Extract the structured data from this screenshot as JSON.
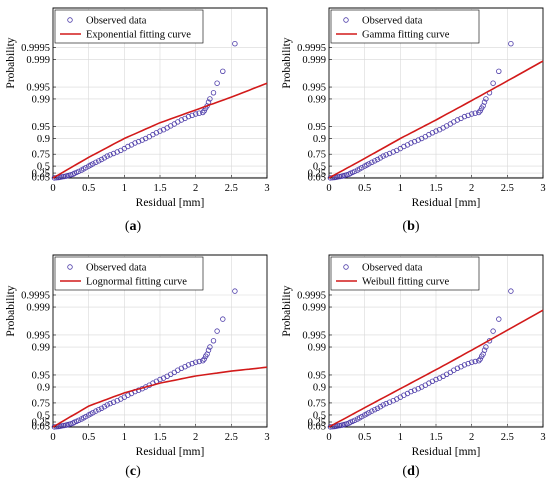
{
  "chart_data": [
    {
      "type": "scatter",
      "caption": "(a)",
      "xlabel": "Residual [mm]",
      "ylabel": "Probability",
      "xlim": [
        0,
        3
      ],
      "xticks": [
        "0",
        "0.5",
        "1",
        "1.5",
        "2",
        "2.5",
        "3"
      ],
      "yticks": [
        "0.05",
        "0.25",
        "0.5",
        "0.75",
        "0.9",
        "0.95",
        "0.99",
        "0.995",
        "0.999",
        "0.9995"
      ],
      "grid": true,
      "legend_position": "top-left",
      "series": [
        {
          "name": "Observed data",
          "kind": "markers",
          "color": "#4b3aa8",
          "x": [
            0.02,
            0.05,
            0.08,
            0.1,
            0.12,
            0.15,
            0.18,
            0.2,
            0.22,
            0.25,
            0.28,
            0.3,
            0.33,
            0.36,
            0.4,
            0.43,
            0.46,
            0.5,
            0.53,
            0.56,
            0.6,
            0.64,
            0.68,
            0.72,
            0.76,
            0.8,
            0.85,
            0.9,
            0.95,
            1.0,
            1.05,
            1.1,
            1.15,
            1.2,
            1.25,
            1.3,
            1.35,
            1.4,
            1.45,
            1.5,
            1.55,
            1.6,
            1.65,
            1.7,
            1.75,
            1.8,
            1.85,
            1.9,
            1.95,
            2.0,
            2.05,
            2.1,
            2.12,
            2.14,
            2.16,
            2.18,
            2.2,
            2.25,
            2.3,
            2.38,
            2.55
          ],
          "y": [
            0.005,
            0.015,
            0.03,
            0.045,
            0.06,
            0.08,
            0.1,
            0.12,
            0.14,
            0.17,
            0.2,
            0.24,
            0.28,
            0.32,
            0.37,
            0.41,
            0.45,
            0.5,
            0.53,
            0.56,
            0.6,
            0.63,
            0.66,
            0.69,
            0.72,
            0.74,
            0.76,
            0.78,
            0.8,
            0.82,
            0.84,
            0.855,
            0.87,
            0.88,
            0.89,
            0.9,
            0.91,
            0.92,
            0.928,
            0.935,
            0.94,
            0.946,
            0.952,
            0.957,
            0.962,
            0.966,
            0.969,
            0.972,
            0.974,
            0.976,
            0.977,
            0.978,
            0.98,
            0.983,
            0.985,
            0.988,
            0.99,
            0.993,
            0.996,
            0.998,
            0.9996
          ]
        },
        {
          "name": "Exponential fitting curve",
          "kind": "line",
          "color": "#d21a1a",
          "x": [
            0,
            0.5,
            1,
            1.5,
            2,
            2.5,
            3
          ],
          "y": [
            0.0,
            0.7,
            0.9,
            0.96,
            0.981,
            0.991,
            0.996
          ]
        }
      ]
    },
    {
      "type": "scatter",
      "caption": "(b)",
      "xlabel": "Residual [mm]",
      "ylabel": "Probability",
      "xlim": [
        0,
        3
      ],
      "xticks": [
        "0",
        "0.5",
        "1",
        "1.5",
        "2",
        "2.5",
        "3"
      ],
      "yticks": [
        "0.05",
        "0.25",
        "0.5",
        "0.75",
        "0.9",
        "0.95",
        "0.99",
        "0.995",
        "0.999",
        "0.9995"
      ],
      "grid": true,
      "legend_position": "top-left",
      "series": [
        {
          "name": "Observed data",
          "kind": "markers",
          "color": "#4b3aa8",
          "x": [
            0.02,
            0.05,
            0.08,
            0.1,
            0.12,
            0.15,
            0.18,
            0.2,
            0.22,
            0.25,
            0.28,
            0.3,
            0.33,
            0.36,
            0.4,
            0.43,
            0.46,
            0.5,
            0.53,
            0.56,
            0.6,
            0.64,
            0.68,
            0.72,
            0.76,
            0.8,
            0.85,
            0.9,
            0.95,
            1.0,
            1.05,
            1.1,
            1.15,
            1.2,
            1.25,
            1.3,
            1.35,
            1.4,
            1.45,
            1.5,
            1.55,
            1.6,
            1.65,
            1.7,
            1.75,
            1.8,
            1.85,
            1.9,
            1.95,
            2.0,
            2.05,
            2.1,
            2.12,
            2.14,
            2.16,
            2.18,
            2.2,
            2.25,
            2.3,
            2.38,
            2.55
          ],
          "y": [
            0.005,
            0.015,
            0.03,
            0.045,
            0.06,
            0.08,
            0.1,
            0.12,
            0.14,
            0.17,
            0.2,
            0.24,
            0.28,
            0.32,
            0.37,
            0.41,
            0.45,
            0.5,
            0.53,
            0.56,
            0.6,
            0.63,
            0.66,
            0.69,
            0.72,
            0.74,
            0.76,
            0.78,
            0.8,
            0.82,
            0.84,
            0.855,
            0.87,
            0.88,
            0.89,
            0.9,
            0.91,
            0.92,
            0.928,
            0.935,
            0.94,
            0.946,
            0.952,
            0.957,
            0.962,
            0.966,
            0.969,
            0.972,
            0.974,
            0.976,
            0.977,
            0.978,
            0.98,
            0.983,
            0.985,
            0.988,
            0.99,
            0.993,
            0.996,
            0.998,
            0.9996
          ]
        },
        {
          "name": "Gamma fitting curve",
          "kind": "line",
          "color": "#d21a1a",
          "x": [
            0,
            0.5,
            1,
            1.5,
            2,
            2.5,
            3
          ],
          "y": [
            0.0,
            0.68,
            0.9,
            0.966,
            0.989,
            0.9965,
            0.9989
          ]
        }
      ]
    },
    {
      "type": "scatter",
      "caption": "(c)",
      "xlabel": "Residual [mm]",
      "ylabel": "Probability",
      "xlim": [
        0,
        3
      ],
      "xticks": [
        "0",
        "0.5",
        "1",
        "1.5",
        "2",
        "2.5",
        "3"
      ],
      "yticks": [
        "0.05",
        "0.25",
        "0.5",
        "0.75",
        "0.9",
        "0.95",
        "0.99",
        "0.995",
        "0.999",
        "0.9995"
      ],
      "grid": true,
      "legend_position": "top-left",
      "series": [
        {
          "name": "Observed data",
          "kind": "markers",
          "color": "#4b3aa8",
          "x": [
            0.02,
            0.05,
            0.08,
            0.1,
            0.12,
            0.15,
            0.18,
            0.2,
            0.22,
            0.25,
            0.28,
            0.3,
            0.33,
            0.36,
            0.4,
            0.43,
            0.46,
            0.5,
            0.53,
            0.56,
            0.6,
            0.64,
            0.68,
            0.72,
            0.76,
            0.8,
            0.85,
            0.9,
            0.95,
            1.0,
            1.05,
            1.1,
            1.15,
            1.2,
            1.25,
            1.3,
            1.35,
            1.4,
            1.45,
            1.5,
            1.55,
            1.6,
            1.65,
            1.7,
            1.75,
            1.8,
            1.85,
            1.9,
            1.95,
            2.0,
            2.05,
            2.1,
            2.12,
            2.14,
            2.16,
            2.18,
            2.2,
            2.25,
            2.3,
            2.38,
            2.55
          ],
          "y": [
            0.005,
            0.015,
            0.03,
            0.045,
            0.06,
            0.08,
            0.1,
            0.12,
            0.14,
            0.17,
            0.2,
            0.24,
            0.28,
            0.32,
            0.37,
            0.41,
            0.45,
            0.5,
            0.53,
            0.56,
            0.6,
            0.63,
            0.66,
            0.69,
            0.72,
            0.74,
            0.76,
            0.78,
            0.8,
            0.82,
            0.84,
            0.855,
            0.87,
            0.88,
            0.89,
            0.9,
            0.91,
            0.92,
            0.928,
            0.935,
            0.94,
            0.946,
            0.952,
            0.957,
            0.962,
            0.966,
            0.969,
            0.972,
            0.974,
            0.976,
            0.977,
            0.978,
            0.98,
            0.983,
            0.985,
            0.988,
            0.99,
            0.993,
            0.996,
            0.998,
            0.9996
          ]
        },
        {
          "name": "Lognormal fitting curve",
          "kind": "line",
          "color": "#d21a1a",
          "x": [
            0,
            0.5,
            1,
            1.5,
            2,
            2.5,
            3
          ],
          "y": [
            0.0,
            0.7,
            0.86,
            0.92,
            0.947,
            0.96,
            0.968
          ]
        }
      ]
    },
    {
      "type": "scatter",
      "caption": "(d)",
      "xlabel": "Residual [mm]",
      "ylabel": "Probability",
      "xlim": [
        0,
        3
      ],
      "xticks": [
        "0",
        "0.5",
        "1",
        "1.5",
        "2",
        "2.5",
        "3"
      ],
      "yticks": [
        "0.05",
        "0.25",
        "0.5",
        "0.75",
        "0.9",
        "0.95",
        "0.99",
        "0.995",
        "0.999",
        "0.9995"
      ],
      "grid": true,
      "legend_position": "top-left",
      "series": [
        {
          "name": "Observed data",
          "kind": "markers",
          "color": "#4b3aa8",
          "x": [
            0.02,
            0.05,
            0.08,
            0.1,
            0.12,
            0.15,
            0.18,
            0.2,
            0.22,
            0.25,
            0.28,
            0.3,
            0.33,
            0.36,
            0.4,
            0.43,
            0.46,
            0.5,
            0.53,
            0.56,
            0.6,
            0.64,
            0.68,
            0.72,
            0.76,
            0.8,
            0.85,
            0.9,
            0.95,
            1.0,
            1.05,
            1.1,
            1.15,
            1.2,
            1.25,
            1.3,
            1.35,
            1.4,
            1.45,
            1.5,
            1.55,
            1.6,
            1.65,
            1.7,
            1.75,
            1.8,
            1.85,
            1.9,
            1.95,
            2.0,
            2.05,
            2.1,
            2.12,
            2.14,
            2.16,
            2.18,
            2.2,
            2.25,
            2.3,
            2.38,
            2.55
          ],
          "y": [
            0.005,
            0.015,
            0.03,
            0.045,
            0.06,
            0.08,
            0.1,
            0.12,
            0.14,
            0.17,
            0.2,
            0.24,
            0.28,
            0.32,
            0.37,
            0.41,
            0.45,
            0.5,
            0.53,
            0.56,
            0.6,
            0.63,
            0.66,
            0.69,
            0.72,
            0.74,
            0.76,
            0.78,
            0.8,
            0.82,
            0.84,
            0.855,
            0.87,
            0.88,
            0.89,
            0.9,
            0.91,
            0.92,
            0.928,
            0.935,
            0.94,
            0.946,
            0.952,
            0.957,
            0.962,
            0.966,
            0.969,
            0.972,
            0.974,
            0.976,
            0.977,
            0.978,
            0.98,
            0.983,
            0.985,
            0.988,
            0.99,
            0.993,
            0.996,
            0.998,
            0.9996
          ]
        },
        {
          "name": "Weibull fitting curve",
          "kind": "line",
          "color": "#d21a1a",
          "x": [
            0,
            0.5,
            1,
            1.5,
            2,
            2.5,
            3
          ],
          "y": [
            0.0,
            0.67,
            0.89,
            0.963,
            0.988,
            0.9962,
            0.9988
          ]
        }
      ]
    }
  ]
}
